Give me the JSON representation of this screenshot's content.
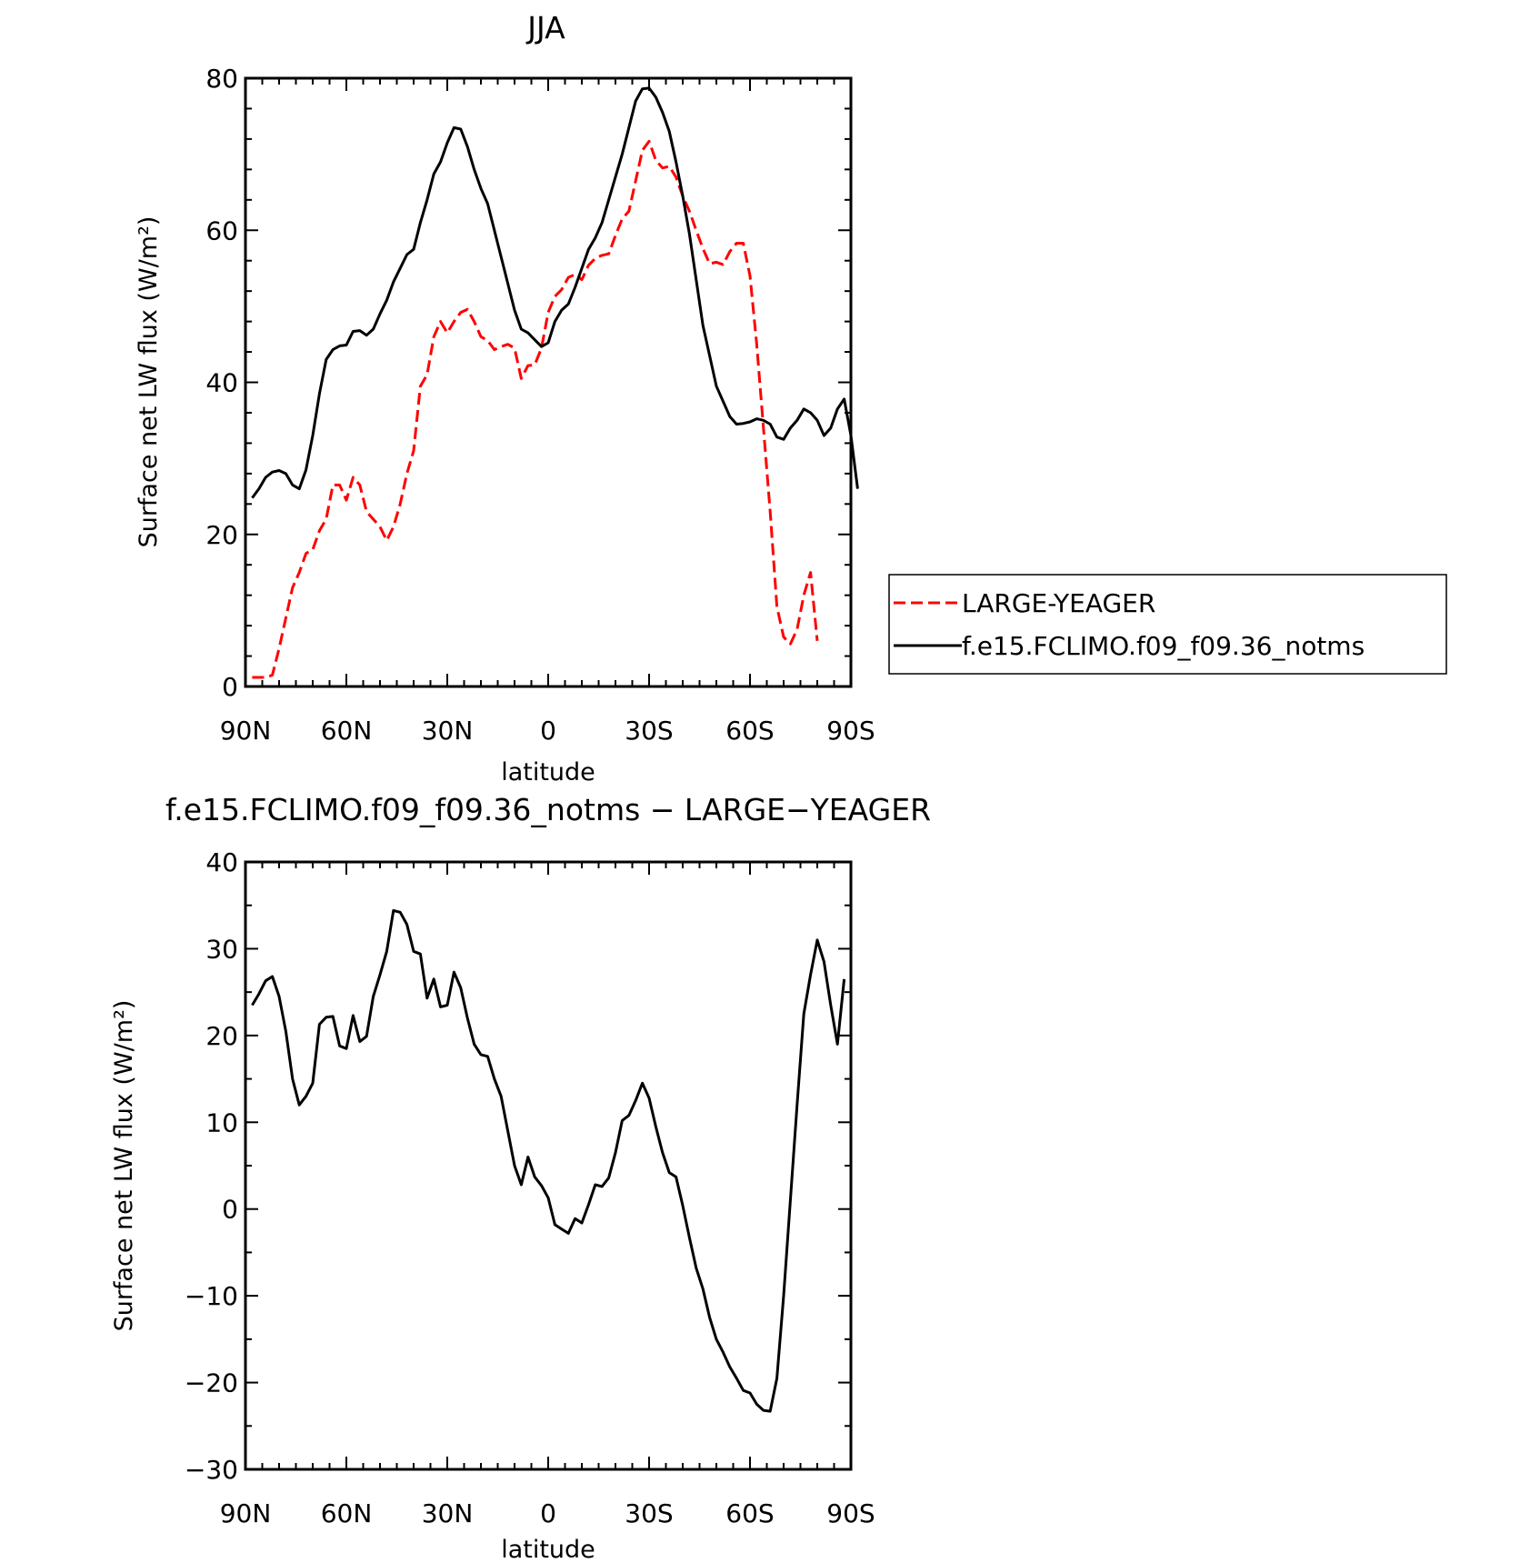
{
  "chart_data": [
    {
      "type": "line",
      "title": "JJA",
      "xlabel": "latitude",
      "ylabel": "Surface net LW flux (W/m²)",
      "xlim": [
        90,
        -90
      ],
      "ylim": [
        0,
        80
      ],
      "x_ticks": [
        90,
        60,
        30,
        0,
        -30,
        -60,
        -90
      ],
      "x_tick_labels": [
        "90N",
        "60N",
        "30N",
        "0",
        "30S",
        "60S",
        "90S"
      ],
      "y_ticks": [
        0,
        20,
        40,
        60,
        80
      ],
      "y_tick_labels": [
        "0",
        "20",
        "40",
        "60",
        "80"
      ],
      "legend": "right",
      "series": [
        {
          "name": "LARGE-YEAGER",
          "color": "#ff0000",
          "dash": "dashed",
          "points": [
            [
              88,
              1.2
            ],
            [
              84,
              1.2
            ],
            [
              82,
              1.5
            ],
            [
              80,
              5
            ],
            [
              78,
              9
            ],
            [
              76,
              13
            ],
            [
              74,
              15
            ],
            [
              72,
              17.5
            ],
            [
              70,
              18
            ],
            [
              68,
              20.5
            ],
            [
              66,
              22
            ],
            [
              64,
              26.5
            ],
            [
              62,
              26.5
            ],
            [
              60,
              24.5
            ],
            [
              58,
              27.5
            ],
            [
              56,
              26.5
            ],
            [
              54,
              23
            ],
            [
              52,
              22
            ],
            [
              50,
              21
            ],
            [
              48,
              19.2
            ],
            [
              46,
              21
            ],
            [
              44,
              24
            ],
            [
              42,
              28
            ],
            [
              40,
              31
            ],
            [
              38,
              39.5
            ],
            [
              36,
              41
            ],
            [
              34,
              46
            ],
            [
              32,
              48
            ],
            [
              30,
              46.5
            ],
            [
              28,
              48
            ],
            [
              26,
              49.2
            ],
            [
              24,
              49.6
            ],
            [
              22,
              48
            ],
            [
              20,
              46
            ],
            [
              18,
              45.5
            ],
            [
              16,
              44.3
            ],
            [
              14,
              44.7
            ],
            [
              12,
              45
            ],
            [
              10,
              44.5
            ],
            [
              8,
              40.5
            ],
            [
              6,
              42.2
            ],
            [
              4,
              42.3
            ],
            [
              2,
              44.5
            ],
            [
              0,
              49.2
            ],
            [
              -2,
              51.3
            ],
            [
              -4,
              52.2
            ],
            [
              -6,
              53.8
            ],
            [
              -8,
              54.2
            ],
            [
              -10,
              53.5
            ],
            [
              -12,
              55.4
            ],
            [
              -14,
              56.3
            ],
            [
              -16,
              56.7
            ],
            [
              -18,
              56.9
            ],
            [
              -20,
              59.3
            ],
            [
              -22,
              61.5
            ],
            [
              -24,
              62.5
            ],
            [
              -26,
              66.5
            ],
            [
              -28,
              70.5
            ],
            [
              -30,
              71.7
            ],
            [
              -32,
              69.2
            ],
            [
              -34,
              68.2
            ],
            [
              -36,
              68.4
            ],
            [
              -38,
              67
            ],
            [
              -40,
              64.5
            ],
            [
              -42,
              62.5
            ],
            [
              -44,
              60
            ],
            [
              -46,
              57.6
            ],
            [
              -48,
              55.6
            ],
            [
              -50,
              55.8
            ],
            [
              -52,
              55.5
            ],
            [
              -54,
              57.2
            ],
            [
              -56,
              58.3
            ],
            [
              -58,
              58.3
            ],
            [
              -60,
              54
            ],
            [
              -62,
              45
            ],
            [
              -64,
              34
            ],
            [
              -66,
              23
            ],
            [
              -68,
              10.5
            ],
            [
              -70,
              6.5
            ],
            [
              -72,
              5.6
            ],
            [
              -74,
              7.5
            ],
            [
              -76,
              12
            ],
            [
              -78,
              15
            ],
            [
              -80,
              6
            ]
          ]
        },
        {
          "name": "f.e15.FCLIMO.f09_f09.36_notms",
          "color": "#000000",
          "dash": "solid",
          "points": [
            [
              88,
              24.8
            ],
            [
              86,
              26
            ],
            [
              84,
              27.5
            ],
            [
              82,
              28.2
            ],
            [
              80,
              28.4
            ],
            [
              78,
              28
            ],
            [
              76,
              26.5
            ],
            [
              74,
              26
            ],
            [
              72,
              28.5
            ],
            [
              70,
              33
            ],
            [
              68,
              38.5
            ],
            [
              66,
              43
            ],
            [
              64,
              44.3
            ],
            [
              62,
              44.8
            ],
            [
              60,
              44.9
            ],
            [
              58,
              46.7
            ],
            [
              56,
              46.8
            ],
            [
              54,
              46.2
            ],
            [
              52,
              47
            ],
            [
              50,
              49
            ],
            [
              48,
              50.8
            ],
            [
              46,
              53.2
            ],
            [
              44,
              55
            ],
            [
              42,
              56.8
            ],
            [
              40,
              57.5
            ],
            [
              38,
              61
            ],
            [
              36,
              64
            ],
            [
              34,
              67.4
            ],
            [
              32,
              69
            ],
            [
              30,
              71.5
            ],
            [
              28,
              73.5
            ],
            [
              26,
              73.3
            ],
            [
              24,
              71
            ],
            [
              22,
              68
            ],
            [
              20,
              65.5
            ],
            [
              18,
              63.5
            ],
            [
              16,
              60
            ],
            [
              14,
              56.5
            ],
            [
              12,
              53
            ],
            [
              10,
              49.5
            ],
            [
              8,
              47
            ],
            [
              6,
              46.5
            ],
            [
              4,
              45.6
            ],
            [
              2,
              44.7
            ],
            [
              0,
              45.2
            ],
            [
              -2,
              48
            ],
            [
              -4,
              49.5
            ],
            [
              -6,
              50.3
            ],
            [
              -8,
              52.5
            ],
            [
              -10,
              55
            ],
            [
              -12,
              57.5
            ],
            [
              -14,
              59
            ],
            [
              -16,
              61
            ],
            [
              -18,
              64
            ],
            [
              -20,
              67
            ],
            [
              -22,
              70
            ],
            [
              -24,
              73.5
            ],
            [
              -26,
              77
            ],
            [
              -28,
              78.6
            ],
            [
              -30,
              78.7
            ],
            [
              -32,
              77.5
            ],
            [
              -34,
              75.5
            ],
            [
              -36,
              73
            ],
            [
              -38,
              69
            ],
            [
              -40,
              64.5
            ],
            [
              -42,
              59.5
            ],
            [
              -44,
              53.5
            ],
            [
              -46,
              47.5
            ],
            [
              -48,
              43.5
            ],
            [
              -50,
              39.5
            ],
            [
              -52,
              37.5
            ],
            [
              -54,
              35.5
            ],
            [
              -56,
              34.5
            ],
            [
              -58,
              34.6
            ],
            [
              -60,
              34.8
            ],
            [
              -62,
              35.2
            ],
            [
              -64,
              35
            ],
            [
              -66,
              34.5
            ],
            [
              -68,
              32.8
            ],
            [
              -70,
              32.5
            ],
            [
              -72,
              34
            ],
            [
              -74,
              35
            ],
            [
              -76,
              36.5
            ],
            [
              -78,
              36
            ],
            [
              -80,
              35
            ],
            [
              -82,
              33
            ],
            [
              -84,
              34
            ],
            [
              -86,
              36.5
            ],
            [
              -88,
              37.8
            ],
            [
              -90,
              33
            ],
            [
              -92,
              26
            ]
          ]
        }
      ]
    },
    {
      "type": "line",
      "title": "f.e15.FCLIMO.f09_f09.36_notms − LARGE−YEAGER",
      "xlabel": "latitude",
      "ylabel": "Surface net LW flux (W/m²)",
      "xlim": [
        90,
        -90
      ],
      "ylim": [
        -30,
        40
      ],
      "x_ticks": [
        90,
        60,
        30,
        0,
        -30,
        -60,
        -90
      ],
      "x_tick_labels": [
        "90N",
        "60N",
        "30N",
        "0",
        "30S",
        "60S",
        "90S"
      ],
      "y_ticks": [
        -30,
        -20,
        -10,
        0,
        10,
        20,
        30,
        40
      ],
      "y_tick_labels": [
        "−30",
        "−20",
        "−10",
        "0",
        "10",
        "20",
        "30",
        "40"
      ],
      "series": [
        {
          "color": "#000000",
          "dash": "solid",
          "points": [
            [
              88,
              23.5
            ],
            [
              86,
              24.8
            ],
            [
              84,
              26.3
            ],
            [
              82,
              26.8
            ],
            [
              80,
              24.5
            ],
            [
              78,
              20.5
            ],
            [
              76,
              15
            ],
            [
              74,
              12
            ],
            [
              72,
              13
            ],
            [
              70,
              14.5
            ],
            [
              68,
              21.3
            ],
            [
              66,
              22.1
            ],
            [
              64,
              22.2
            ],
            [
              62,
              18.8
            ],
            [
              60,
              18.5
            ],
            [
              58,
              22.3
            ],
            [
              56,
              19.3
            ],
            [
              54,
              19.9
            ],
            [
              52,
              24.5
            ],
            [
              50,
              27
            ],
            [
              48,
              29.7
            ],
            [
              46,
              34.4
            ],
            [
              44,
              34.2
            ],
            [
              42,
              32.8
            ],
            [
              40,
              29.7
            ],
            [
              38,
              29.4
            ],
            [
              36,
              24.3
            ],
            [
              34,
              26.5
            ],
            [
              32,
              23.3
            ],
            [
              30,
              23.5
            ],
            [
              28,
              27.3
            ],
            [
              26,
              25.5
            ],
            [
              24,
              22
            ],
            [
              22,
              19
            ],
            [
              20,
              17.8
            ],
            [
              18,
              17.6
            ],
            [
              16,
              15
            ],
            [
              14,
              13
            ],
            [
              12,
              9
            ],
            [
              10,
              5
            ],
            [
              8,
              2.8
            ],
            [
              6,
              6
            ],
            [
              4,
              3.7
            ],
            [
              2,
              2.7
            ],
            [
              0,
              1.3
            ],
            [
              -2,
              -1.8
            ],
            [
              -4,
              -2.3
            ],
            [
              -6,
              -2.8
            ],
            [
              -8,
              -1.1
            ],
            [
              -10,
              -1.6
            ],
            [
              -12,
              0.5
            ],
            [
              -14,
              2.8
            ],
            [
              -16,
              2.6
            ],
            [
              -18,
              3.6
            ],
            [
              -20,
              6.5
            ],
            [
              -22,
              10.2
            ],
            [
              -24,
              10.8
            ],
            [
              -26,
              12.5
            ],
            [
              -28,
              14.5
            ],
            [
              -30,
              12.8
            ],
            [
              -32,
              9.5
            ],
            [
              -34,
              6.5
            ],
            [
              -36,
              4.2
            ],
            [
              -38,
              3.7
            ],
            [
              -40,
              0.4
            ],
            [
              -42,
              -3.3
            ],
            [
              -44,
              -6.8
            ],
            [
              -46,
              -9.2
            ],
            [
              -48,
              -12.5
            ],
            [
              -50,
              -15
            ],
            [
              -52,
              -16.5
            ],
            [
              -54,
              -18.2
            ],
            [
              -56,
              -19.5
            ],
            [
              -58,
              -20.9
            ],
            [
              -60,
              -21.2
            ],
            [
              -62,
              -22.5
            ],
            [
              -64,
              -23.2
            ],
            [
              -66,
              -23.3
            ],
            [
              -68,
              -19.5
            ],
            [
              -70,
              -10
            ],
            [
              -72,
              1
            ],
            [
              -74,
              12
            ],
            [
              -76,
              22.5
            ],
            [
              -78,
              27
            ],
            [
              -80,
              31
            ],
            [
              -82,
              28.5
            ],
            [
              -84,
              23.5
            ],
            [
              -86,
              19
            ],
            [
              -88,
              26.5
            ]
          ]
        }
      ]
    }
  ]
}
